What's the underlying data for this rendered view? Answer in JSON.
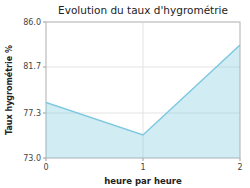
{
  "chart_data": {
    "type": "area",
    "title": "Evolution du taux d'hygrométrie",
    "x_label": "heure par heure",
    "y_label": "Taux hygrométrie %",
    "x": [
      0,
      1,
      2
    ],
    "values": [
      78.3,
      75.2,
      83.8
    ],
    "color": "#7dc8e0",
    "xlim": [
      0,
      2
    ],
    "ylim": [
      73.0,
      86.0
    ],
    "xticks": [
      0,
      1,
      2
    ],
    "yticks": [
      {
        "value": 73.0,
        "label": "73.0"
      },
      77.3,
      81.7,
      {
        "value": 86.0,
        "label": "86.0"
      }
    ],
    "grid": true
  }
}
